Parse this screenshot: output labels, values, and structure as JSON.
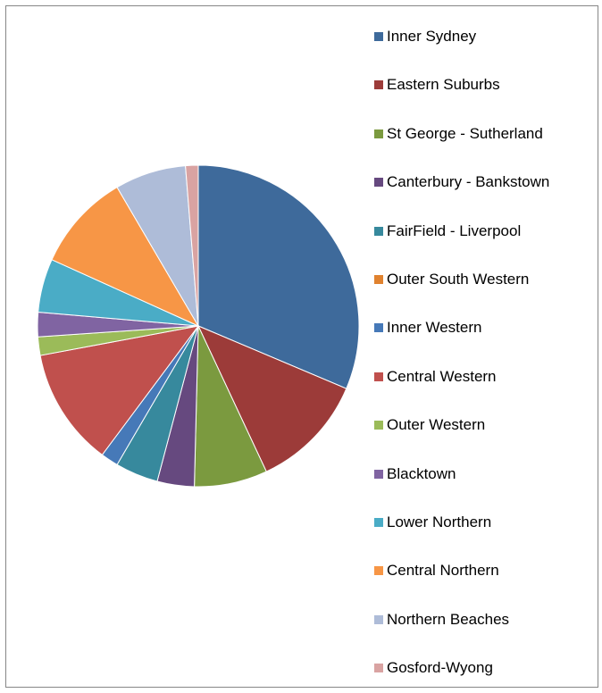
{
  "chart_data": {
    "type": "pie",
    "start_angle_deg": 0,
    "direction": "clockwise",
    "legend_position": "right",
    "categories": [
      "Inner Sydney",
      "Eastern Suburbs",
      "St George - Sutherland",
      "Canterbury - Bankstown",
      "FairField - Liverpool",
      "Outer South Western",
      "Inner Western",
      "Central Western",
      "Outer Western",
      "Blacktown",
      "Lower Northern",
      "Central Northern",
      "Northern Beaches",
      "Gosford-Wyong"
    ],
    "values": [
      32.0,
      11.9,
      7.5,
      3.8,
      4.4,
      0.0,
      1.8,
      12.1,
      1.9,
      2.5,
      5.5,
      10.0,
      7.3,
      1.3
    ],
    "colors": [
      "#3e6a9b",
      "#9c3b39",
      "#7b9a3f",
      "#66497f",
      "#37899d",
      "#e0822f",
      "#4679b8",
      "#c0504d",
      "#9bbb59",
      "#8064a2",
      "#4aacc6",
      "#f79646",
      "#aebcd8",
      "#d9a3a2"
    ]
  }
}
